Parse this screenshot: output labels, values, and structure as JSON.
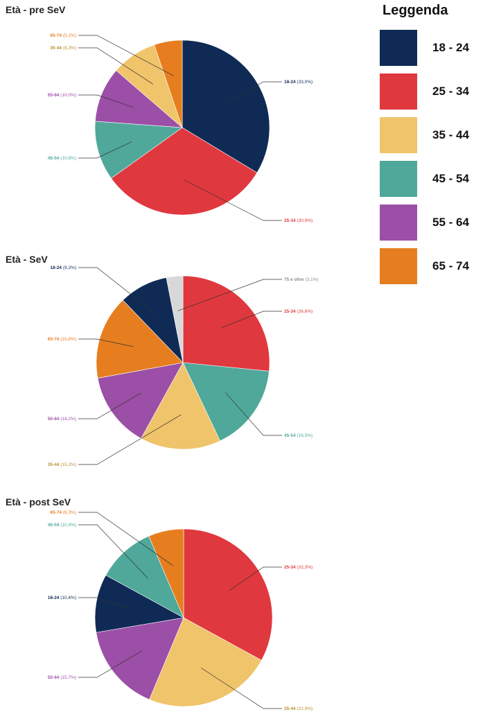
{
  "colors": {
    "18 - 24": "#0f2a54",
    "25 - 34": "#e0383f",
    "35 - 44": "#f0c46a",
    "45 - 54": "#4fa89a",
    "55 - 64": "#9c4fa6",
    "65 - 74": "#e67e1f",
    "75 e oltre": "#d8d8d8"
  },
  "legend": {
    "title": "Leggenda",
    "items": [
      "18 - 24",
      "25 - 34",
      "35 - 44",
      "45 - 54",
      "55 - 64",
      "65 - 74"
    ]
  },
  "chart_data": [
    {
      "type": "pie",
      "title": "Età - pre SeV",
      "slices": [
        {
          "category": "18 - 24",
          "label": "18-24",
          "value": 33.0,
          "pct_text": "(33,0%)"
        },
        {
          "category": "25 - 34",
          "label": "25-34",
          "value": 30.9,
          "pct_text": "(30,9%)"
        },
        {
          "category": "45 - 54",
          "label": "45-54",
          "value": 10.8,
          "pct_text": "(10,8%)"
        },
        {
          "category": "55 - 64",
          "label": "55-64",
          "value": 10.0,
          "pct_text": "(10,0%)"
        },
        {
          "category": "35 - 44",
          "label": "35-44",
          "value": 8.3,
          "pct_text": "(8,3%)"
        },
        {
          "category": "65 - 74",
          "label": "65-74",
          "value": 5.1,
          "pct_text": "(5,1%)"
        }
      ]
    },
    {
      "type": "pie",
      "title": "Età - SeV",
      "slices": [
        {
          "category": "25 - 34",
          "label": "25-34",
          "value": 26.8,
          "pct_text": "(26,8%)"
        },
        {
          "category": "45 - 54",
          "label": "45-54",
          "value": 16.5,
          "pct_text": "(16,5%)"
        },
        {
          "category": "35 - 44",
          "label": "35-44",
          "value": 15.2,
          "pct_text": "(15,2%)"
        },
        {
          "category": "55 - 64",
          "label": "55-64",
          "value": 14.2,
          "pct_text": "(14,2%)"
        },
        {
          "category": "65 - 74",
          "label": "65-74",
          "value": 15.8,
          "pct_text": "(15,8%)"
        },
        {
          "category": "18 - 24",
          "label": "18-24",
          "value": 9.2,
          "pct_text": "(9,2%)"
        },
        {
          "category": "75 e oltre",
          "label": "75 e oltre",
          "value": 3.1,
          "pct_text": "(3,1%)"
        }
      ]
    },
    {
      "type": "pie",
      "title": "Età - post SeV",
      "slices": [
        {
          "category": "25 - 34",
          "label": "25-34",
          "value": 32.3,
          "pct_text": "(32,3%)"
        },
        {
          "category": "35 - 44",
          "label": "35-44",
          "value": 22.9,
          "pct_text": "(22,9%)"
        },
        {
          "category": "55 - 64",
          "label": "55-64",
          "value": 15.7,
          "pct_text": "(15,7%)"
        },
        {
          "category": "18 - 24",
          "label": "18-24",
          "value": 10.4,
          "pct_text": "(10,4%)"
        },
        {
          "category": "45 - 54",
          "label": "45-54",
          "value": 10.4,
          "pct_text": "(10,4%)"
        },
        {
          "category": "65 - 74",
          "label": "65-74",
          "value": 6.3,
          "pct_text": "(6,3%)"
        }
      ]
    }
  ]
}
